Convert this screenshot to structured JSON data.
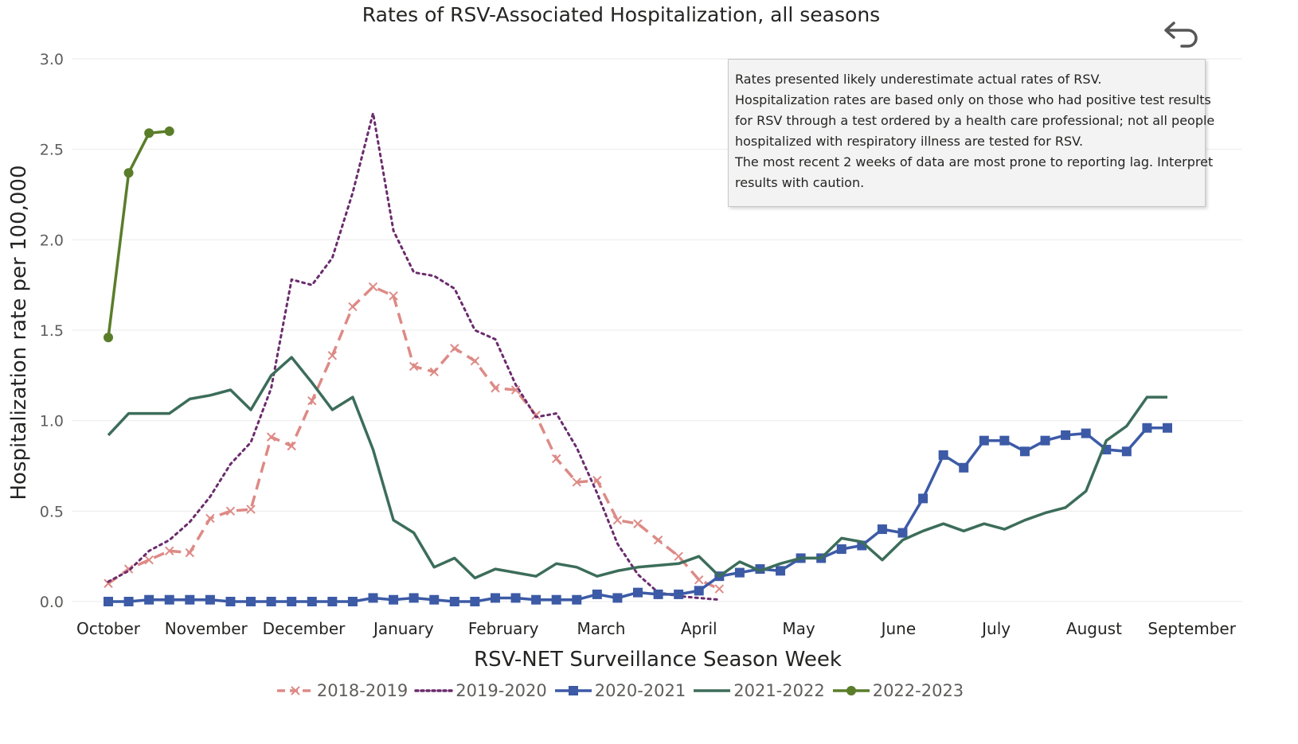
{
  "chart_data": {
    "type": "line",
    "title": "Rates of RSV-Associated Hospitalization, all seasons",
    "xlabel": "RSV-NET Surveillance Season Week",
    "ylabel": "Hospitalization rate per 100,000",
    "ylim": [
      0,
      3.0
    ],
    "yticks": [
      "0.0",
      "0.5",
      "1.0",
      "1.5",
      "2.0",
      "2.5",
      "3.0"
    ],
    "xlim": [
      1,
      53
    ],
    "month_labels": [
      {
        "label": "October",
        "week": 1
      },
      {
        "label": "November",
        "week": 5.8
      },
      {
        "label": "December",
        "week": 10.6
      },
      {
        "label": "January",
        "week": 15.5
      },
      {
        "label": "February",
        "week": 20.4
      },
      {
        "label": "March",
        "week": 25.2
      },
      {
        "label": "April",
        "week": 30.0
      },
      {
        "label": "May",
        "week": 34.9
      },
      {
        "label": "June",
        "week": 39.8
      },
      {
        "label": "July",
        "week": 44.6
      },
      {
        "label": "August",
        "week": 49.4
      },
      {
        "label": "September",
        "week": 54.2
      }
    ],
    "grid": true,
    "legend_position": "bottom",
    "series": [
      {
        "name": "2018-2019",
        "color": "#dd8a86",
        "style": "dashed",
        "marker": "x",
        "x": [
          1,
          2,
          3,
          4,
          5,
          6,
          7,
          8,
          9,
          10,
          11,
          12,
          13,
          14,
          15,
          16,
          17,
          18,
          19,
          20,
          21,
          22,
          23,
          24,
          25,
          26,
          27,
          28,
          29,
          30,
          31
        ],
        "values": [
          0.1,
          0.18,
          0.23,
          0.28,
          0.27,
          0.46,
          0.5,
          0.51,
          0.91,
          0.86,
          1.11,
          1.36,
          1.63,
          1.74,
          1.69,
          1.3,
          1.27,
          1.4,
          1.33,
          1.18,
          1.17,
          1.03,
          0.79,
          0.66,
          0.67,
          0.45,
          0.43,
          0.34,
          0.25,
          0.12,
          0.07
        ]
      },
      {
        "name": "2019-2020",
        "color": "#6a2c6d",
        "style": "dotted",
        "marker": "none",
        "x": [
          1,
          2,
          3,
          4,
          5,
          6,
          7,
          8,
          9,
          10,
          11,
          12,
          13,
          14,
          15,
          16,
          17,
          18,
          19,
          20,
          21,
          22,
          23,
          24,
          25,
          26,
          27,
          28,
          29,
          30,
          31
        ],
        "values": [
          0.11,
          0.17,
          0.28,
          0.34,
          0.44,
          0.58,
          0.76,
          0.88,
          1.18,
          1.78,
          1.75,
          1.9,
          2.26,
          2.7,
          2.05,
          1.82,
          1.8,
          1.73,
          1.5,
          1.45,
          1.2,
          1.02,
          1.04,
          0.85,
          0.6,
          0.32,
          0.15,
          0.05,
          0.03,
          0.02,
          0.01
        ]
      },
      {
        "name": "2020-2021",
        "color": "#3c5aa6",
        "style": "solid",
        "marker": "square",
        "x": [
          1,
          2,
          3,
          4,
          5,
          6,
          7,
          8,
          9,
          10,
          11,
          12,
          13,
          14,
          15,
          16,
          17,
          18,
          19,
          20,
          21,
          22,
          23,
          24,
          25,
          26,
          27,
          28,
          29,
          30,
          31,
          32,
          33,
          34,
          35,
          36,
          37,
          38,
          39,
          40,
          41,
          42,
          43,
          44,
          45,
          46,
          47,
          48,
          49,
          50,
          51,
          52,
          53
        ],
        "values": [
          0.0,
          0.0,
          0.01,
          0.01,
          0.01,
          0.01,
          0.0,
          0.0,
          0.0,
          0.0,
          0.0,
          0.0,
          0.0,
          0.02,
          0.01,
          0.02,
          0.01,
          0.0,
          0.0,
          0.02,
          0.02,
          0.01,
          0.01,
          0.01,
          0.04,
          0.02,
          0.05,
          0.04,
          0.04,
          0.06,
          0.14,
          0.16,
          0.18,
          0.17,
          0.24,
          0.24,
          0.29,
          0.31,
          0.4,
          0.38,
          0.57,
          0.81,
          0.74,
          0.89,
          0.89,
          0.83,
          0.89,
          0.92,
          0.93,
          0.84,
          0.83,
          0.96,
          0.96
        ]
      },
      {
        "name": "2021-2022",
        "color": "#3c6d5a",
        "style": "solid",
        "marker": "none",
        "x": [
          1,
          2,
          3,
          4,
          5,
          6,
          7,
          8,
          9,
          10,
          11,
          12,
          13,
          14,
          15,
          16,
          17,
          18,
          19,
          20,
          21,
          22,
          23,
          24,
          25,
          26,
          27,
          28,
          29,
          30,
          31,
          32,
          33,
          34,
          35,
          36,
          37,
          38,
          39,
          40,
          41,
          42,
          43,
          44,
          45,
          46,
          47,
          48,
          49,
          50,
          51,
          52,
          53
        ],
        "values": [
          0.92,
          1.04,
          1.04,
          1.04,
          1.12,
          1.14,
          1.17,
          1.06,
          1.25,
          1.35,
          1.21,
          1.06,
          1.13,
          0.84,
          0.45,
          0.38,
          0.19,
          0.24,
          0.13,
          0.18,
          0.16,
          0.14,
          0.21,
          0.19,
          0.14,
          0.17,
          0.19,
          0.2,
          0.21,
          0.25,
          0.14,
          0.22,
          0.17,
          0.21,
          0.24,
          0.24,
          0.35,
          0.33,
          0.23,
          0.34,
          0.39,
          0.43,
          0.39,
          0.43,
          0.4,
          0.45,
          0.49,
          0.52,
          0.61,
          0.89,
          0.97,
          1.13,
          1.13
        ]
      },
      {
        "name": "2022-2023",
        "color": "#5a7d2a",
        "style": "solid",
        "marker": "circle",
        "x": [
          1,
          2,
          3,
          4
        ],
        "values": [
          1.46,
          2.37,
          2.59,
          2.6
        ]
      }
    ]
  },
  "note": {
    "lines": [
      "Rates presented likely underestimate actual rates of RSV.",
      "Hospitalization rates are based only on those who had positive test results",
      "for RSV through a test ordered by a health care professional; not all people",
      "hospitalized with respiratory illness are tested for RSV.",
      "The most recent 2 weeks of data are most prone to reporting lag. Interpret",
      "results with caution."
    ]
  },
  "toolbar": {
    "undo_icon": "undo-arrow-icon"
  }
}
